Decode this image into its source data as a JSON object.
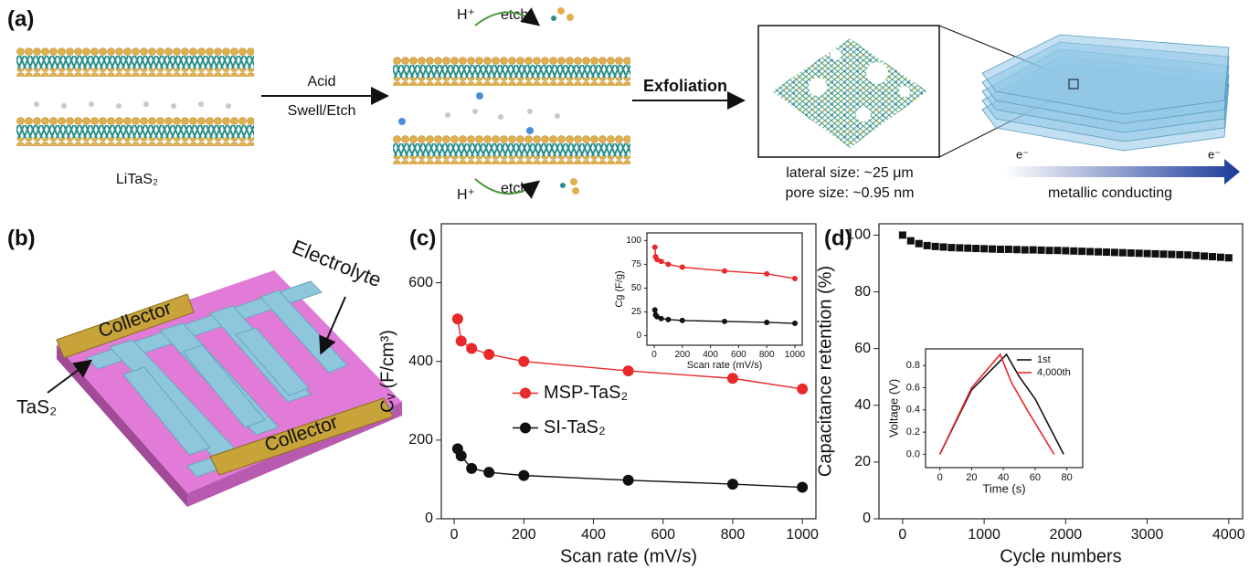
{
  "panels": {
    "a": {
      "label": "(a)",
      "precursor": "LiTaS₂",
      "step1_top": "Acid",
      "step1_bottom": "Swell/Etch",
      "proton_top": "H⁺",
      "etch_top": "etch",
      "proton_bottom": "H⁺",
      "etch_bottom": "etch",
      "step2": "Exfoliation",
      "lateral_size": "lateral size: ~25 μm",
      "pore_size": "pore size: ~0.95 nm",
      "electron_left": "e⁻",
      "electron_right": "e⁻",
      "conduction": "metallic conducting"
    },
    "b": {
      "label": "(b)",
      "collector_top": "Collector",
      "collector_bottom": "Collector",
      "electrolyte": "Electrolyte",
      "active": "TaS₂"
    },
    "c": {
      "label": "(c)"
    },
    "d": {
      "label": "(d)"
    }
  },
  "chart_data": [
    {
      "type": "line",
      "xlabel": "Scan rate (mV/s)",
      "ylabel": "Cᵥ (F/cm³)",
      "x": [
        10,
        20,
        50,
        100,
        200,
        500,
        800,
        1000
      ],
      "series": [
        {
          "name": "MSP-TaS₂",
          "color": "#e8282a",
          "marker": "circle",
          "values": [
            508,
            452,
            433,
            418,
            400,
            376,
            357,
            330
          ]
        },
        {
          "name": "SI-TaS₂",
          "color": "#111111",
          "marker": "circle",
          "values": [
            178,
            160,
            128,
            118,
            110,
            98,
            88,
            80
          ]
        }
      ],
      "xlim": [
        -37,
        1039
      ],
      "ylim": [
        0,
        750
      ],
      "xticks": [
        0,
        200,
        400,
        600,
        800,
        1000
      ],
      "yticks": [
        0,
        200,
        400,
        600
      ],
      "legend": "center-left"
    },
    {
      "type": "line",
      "xlabel": "Scan rate (mV/s)",
      "ylabel": "Cg (F/g)",
      "x": [
        5,
        10,
        20,
        50,
        100,
        200,
        500,
        800,
        1000
      ],
      "series": [
        {
          "color": "#e8282a",
          "marker": "circle",
          "values": [
            93,
            83,
            80,
            78,
            75,
            72,
            68,
            65,
            60
          ]
        },
        {
          "color": "#111111",
          "marker": "circle",
          "values": [
            27,
            22,
            20,
            18,
            17,
            16,
            15,
            14,
            13
          ]
        }
      ],
      "xlim": [
        -52,
        1052
      ],
      "ylim": [
        -10,
        108
      ],
      "xticks": [
        0,
        200,
        400,
        600,
        800,
        1000
      ],
      "yticks": [
        0,
        25,
        50,
        75,
        100
      ]
    },
    {
      "type": "scatter",
      "xlabel": "Cycle numbers",
      "ylabel": "Capacitance retention (%)",
      "x": [
        0,
        100,
        200,
        300,
        400,
        500,
        600,
        700,
        800,
        900,
        1000,
        1100,
        1200,
        1300,
        1400,
        1500,
        1600,
        1700,
        1800,
        1900,
        2000,
        2100,
        2200,
        2300,
        2400,
        2500,
        2600,
        2700,
        2800,
        2900,
        3000,
        3100,
        3200,
        3300,
        3400,
        3500,
        3600,
        3700,
        3800,
        3900,
        4000
      ],
      "series": [
        {
          "color": "#111111",
          "marker": "square",
          "values": [
            100,
            98,
            97,
            96.3,
            96,
            95.8,
            95.6,
            95.5,
            95.4,
            95.3,
            95.2,
            95.1,
            95,
            95,
            94.9,
            94.8,
            94.8,
            94.7,
            94.6,
            94.6,
            94.5,
            94.4,
            94.3,
            94.2,
            94.1,
            94,
            93.9,
            93.8,
            93.7,
            93.6,
            93.5,
            93.4,
            93.3,
            93.2,
            93.1,
            93,
            92.8,
            92.6,
            92.4,
            92.2,
            92
          ]
        }
      ],
      "xlim": [
        -290,
        4170
      ],
      "ylim": [
        0,
        104
      ],
      "xticks": [
        0,
        1000,
        2000,
        3000,
        4000
      ],
      "yticks": [
        0,
        20,
        40,
        60,
        80,
        100
      ]
    },
    {
      "type": "line",
      "xlabel": "Time (s)",
      "ylabel": "Voltage (V)",
      "series": [
        {
          "name": "1st",
          "color": "#111111",
          "x": [
            0,
            20,
            42,
            50,
            60,
            78
          ],
          "values": [
            0,
            0.58,
            0.9,
            0.7,
            0.5,
            0
          ]
        },
        {
          "name": "4,000th",
          "color": "#e8282a",
          "x": [
            0,
            20,
            38,
            45,
            55,
            72
          ],
          "values": [
            0,
            0.6,
            0.9,
            0.65,
            0.4,
            0
          ]
        }
      ],
      "xlim": [
        -9,
        90
      ],
      "ylim": [
        -0.12,
        0.95
      ],
      "xticks": [
        0,
        20,
        40,
        60,
        80
      ],
      "yticks": [
        {
          "value": 0,
          "label": "0.0"
        },
        0.2,
        0.4,
        0.6,
        0.8
      ],
      "legend": "upper-right"
    }
  ]
}
